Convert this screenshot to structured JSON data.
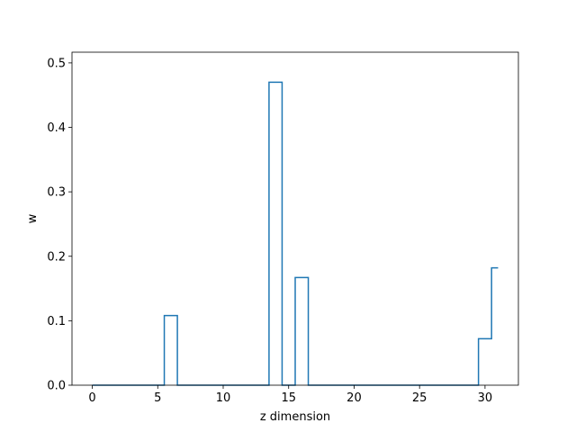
{
  "chart_data": {
    "type": "line",
    "drawstyle": "steps-mid",
    "xlabel": "z dimension",
    "ylabel": "w",
    "xlim": [
      -1.55,
      32.55
    ],
    "ylim": [
      0,
      0.5166
    ],
    "xticks": [
      0,
      5,
      10,
      15,
      20,
      25,
      30
    ],
    "yticks": [
      0.0,
      0.1,
      0.2,
      0.3,
      0.4,
      0.5
    ],
    "ytick_labels": [
      "0.0",
      "0.1",
      "0.2",
      "0.3",
      "0.4",
      "0.5"
    ],
    "grid": false,
    "line_color": "#1f77b4",
    "series": [
      {
        "x": [
          0,
          1,
          2,
          3,
          4,
          5,
          6,
          7,
          8,
          9,
          10,
          11,
          12,
          13,
          14,
          15,
          16,
          17,
          18,
          19,
          20,
          21,
          22,
          23,
          24,
          25,
          26,
          27,
          28,
          29,
          30,
          31
        ],
        "y": [
          0,
          0,
          0,
          0,
          0,
          0,
          0.108,
          0,
          0,
          0,
          0,
          0,
          0,
          0,
          0.47,
          0,
          0.167,
          0,
          0,
          0,
          0,
          0,
          0,
          0,
          0,
          0,
          0,
          0,
          0,
          0,
          0.072,
          0.182
        ]
      }
    ]
  }
}
